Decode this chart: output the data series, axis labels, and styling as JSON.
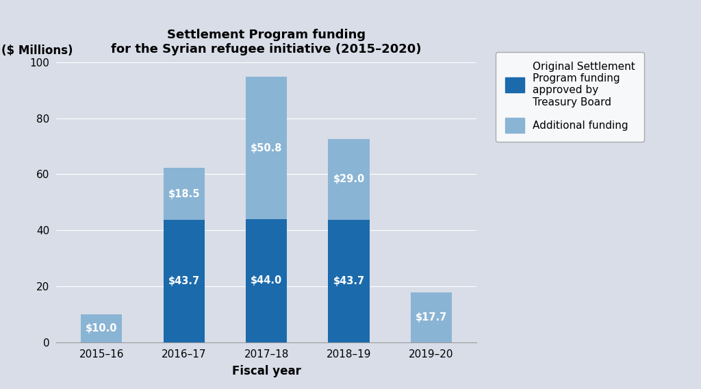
{
  "categories": [
    "2015–16",
    "2016–17",
    "2017–18",
    "2018–19",
    "2019–20"
  ],
  "original_values": [
    0,
    43.7,
    44.0,
    43.7,
    0
  ],
  "additional_values": [
    10.0,
    18.5,
    50.8,
    29.0,
    17.7
  ],
  "original_labels": [
    "",
    "$43.7",
    "$44.0",
    "$43.7",
    ""
  ],
  "additional_labels": [
    "$10.0",
    "$18.5",
    "$50.8",
    "$29.0",
    "$17.7"
  ],
  "original_color": "#1b6aac",
  "additional_color": "#8ab4d4",
  "background_color": "#d8dde8",
  "title_line1": "Settlement Program funding",
  "title_line2": "for the Syrian refugee initiative (2015–2020)",
  "ylabel_text": "($ Millions)",
  "xlabel": "Fiscal year",
  "ylim": [
    0,
    100
  ],
  "yticks": [
    0,
    20,
    40,
    60,
    80,
    100
  ],
  "legend_label1": "Original Settlement\nProgram funding\napproved by\nTreasury Board",
  "legend_label2": "Additional funding",
  "title_fontsize": 13,
  "axis_label_fontsize": 12,
  "tick_fontsize": 11,
  "bar_label_fontsize": 10.5,
  "legend_fontsize": 11,
  "ylabel_fontsize": 12
}
